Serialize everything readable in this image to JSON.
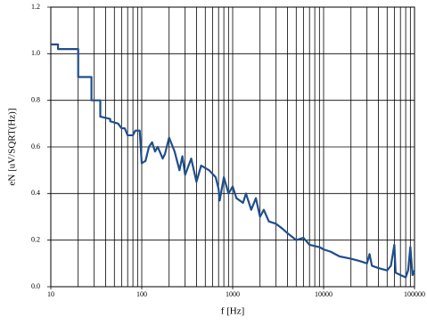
{
  "chart_data": {
    "type": "line",
    "xlabel": "f [Hz]",
    "ylabel": "eN [uV/SQRT(Hz)]",
    "xscale": "log",
    "xlim": [
      10,
      100000
    ],
    "xticks": [
      10,
      100,
      1000,
      10000,
      100000
    ],
    "ylim": [
      0,
      1.2
    ],
    "yticks": [
      {
        "value": 0,
        "label": "0.0"
      },
      0.2,
      0.4,
      0.6,
      0.8,
      {
        "value": 1,
        "label": "1.0"
      },
      1.2
    ],
    "grid": true,
    "minor_grid": true,
    "series": [
      {
        "color": "#1f4e8c",
        "x": [
          10,
          12,
          12,
          20,
          20,
          28,
          28,
          35,
          35,
          45,
          45,
          55,
          60,
          65,
          70,
          80,
          85,
          95,
          100,
          110,
          120,
          130,
          140,
          150,
          170,
          180,
          200,
          230,
          260,
          280,
          300,
          350,
          400,
          450,
          550,
          650,
          700,
          720,
          800,
          900,
          1000,
          1100,
          1300,
          1400,
          1600,
          1800,
          2000,
          2200,
          2500,
          3000,
          3500,
          4000,
          5000,
          6000,
          7000,
          9000,
          10000,
          12000,
          15000,
          20000,
          25000,
          30000,
          32000,
          34000,
          40000,
          50000,
          55000,
          60000,
          62000,
          70000,
          80000,
          85000,
          90000,
          95000,
          100000
        ],
        "values": [
          1.04,
          1.04,
          1.02,
          1.02,
          0.9,
          0.9,
          0.8,
          0.8,
          0.73,
          0.72,
          0.71,
          0.7,
          0.68,
          0.68,
          0.65,
          0.65,
          0.67,
          0.67,
          0.53,
          0.54,
          0.6,
          0.62,
          0.58,
          0.6,
          0.55,
          0.57,
          0.64,
          0.58,
          0.5,
          0.56,
          0.48,
          0.55,
          0.45,
          0.52,
          0.5,
          0.47,
          0.42,
          0.37,
          0.47,
          0.4,
          0.43,
          0.38,
          0.36,
          0.4,
          0.33,
          0.38,
          0.3,
          0.33,
          0.28,
          0.27,
          0.25,
          0.23,
          0.2,
          0.21,
          0.18,
          0.17,
          0.16,
          0.15,
          0.13,
          0.12,
          0.11,
          0.1,
          0.14,
          0.09,
          0.08,
          0.07,
          0.09,
          0.18,
          0.06,
          0.05,
          0.04,
          0.07,
          0.17,
          0.05,
          0.07
        ]
      }
    ]
  }
}
